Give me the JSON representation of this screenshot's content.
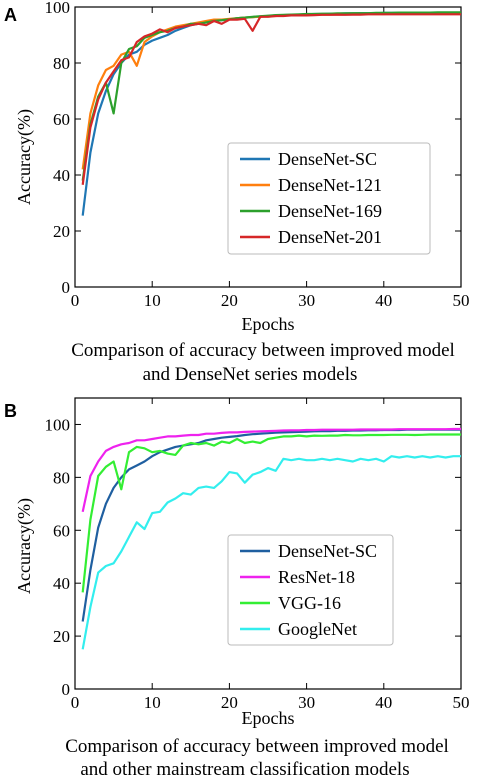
{
  "chart_data": [
    {
      "panel": "A",
      "type": "line",
      "xlabel": "Epochs",
      "ylabel": "Accuracy(%)",
      "xlim": [
        0,
        50
      ],
      "ylim": [
        0,
        100
      ],
      "xticks": [
        0,
        10,
        20,
        30,
        40,
        50
      ],
      "yticks": [
        0,
        20,
        40,
        60,
        80,
        100
      ],
      "grid": false,
      "legend_position": "center-right",
      "caption": [
        "Comparison of accuracy between improved model",
        "and DenseNet series models"
      ],
      "x": [
        1,
        2,
        3,
        4,
        5,
        6,
        7,
        8,
        9,
        10,
        11,
        12,
        13,
        14,
        15,
        16,
        17,
        18,
        19,
        20,
        21,
        22,
        23,
        24,
        25,
        26,
        27,
        28,
        29,
        30,
        31,
        32,
        33,
        34,
        35,
        36,
        37,
        38,
        39,
        40,
        41,
        42,
        43,
        44,
        45,
        46,
        47,
        48,
        49,
        50
      ],
      "series": [
        {
          "name": "DenseNet-SC",
          "color": "#1f77b4",
          "values": [
            25.5,
            48,
            62,
            70,
            76,
            80,
            83,
            84,
            86.5,
            88,
            89,
            90,
            91.5,
            92.5,
            93.5,
            94,
            94.5,
            95,
            95.3,
            95.6,
            96,
            96.2,
            96.4,
            96.6,
            96.8,
            97,
            97.1,
            97.2,
            97.3,
            97.4,
            97.5,
            97.5,
            97.6,
            97.6,
            97.7,
            97.7,
            97.8,
            97.8,
            97.8,
            97.9,
            97.9,
            97.9,
            98,
            98,
            98,
            98,
            98,
            98,
            98,
            98
          ]
        },
        {
          "name": "DenseNet-121",
          "color": "#ff7f0e",
          "values": [
            42,
            62,
            72,
            77.5,
            79,
            83,
            84,
            79,
            87.5,
            89.5,
            91,
            92,
            93,
            93.5,
            94,
            94.5,
            95,
            95.5,
            95.5,
            95.8,
            96,
            96.2,
            96.4,
            96.5,
            96.7,
            96.8,
            97,
            97,
            97.1,
            97.2,
            97.2,
            97.3,
            97.3,
            97.4,
            97.4,
            97.4,
            97.5,
            97.5,
            97.5,
            97.5,
            97.6,
            97.6,
            97.6,
            97.6,
            97.6,
            97.7,
            97.7,
            97.7,
            97.7,
            97.7
          ]
        },
        {
          "name": "DenseNet-169",
          "color": "#2ca02c",
          "values": [
            38,
            58,
            68,
            73,
            62,
            80,
            85,
            86,
            89,
            90,
            91,
            91.5,
            92.5,
            93,
            94,
            94,
            94.5,
            95,
            95.3,
            95.6,
            96,
            96.2,
            96.5,
            96.7,
            96.9,
            97.1,
            97.2,
            97.3,
            97.4,
            97.5,
            97.5,
            97.6,
            97.6,
            97.7,
            97.7,
            97.8,
            97.8,
            97.8,
            97.9,
            97.9,
            97.9,
            98,
            98,
            98,
            98,
            98,
            98.1,
            98.1,
            98.1,
            98.1
          ]
        },
        {
          "name": "DenseNet-201",
          "color": "#d62728",
          "values": [
            36.5,
            57,
            67,
            73,
            77,
            81,
            82,
            87.5,
            89.5,
            90.5,
            92,
            91,
            92.5,
            93,
            93.5,
            94,
            93.5,
            95,
            94,
            95.5,
            95.5,
            95.8,
            91.5,
            96.5,
            96.5,
            96.8,
            96.8,
            97,
            97,
            97,
            97.1,
            97.2,
            97.2,
            97.3,
            97.2,
            97.3,
            97.3,
            97.4,
            97.4,
            97.4,
            97.4,
            97.4,
            97.4,
            97.4,
            97.4,
            97.4,
            97.4,
            97.4,
            97.4,
            97.4
          ]
        }
      ]
    },
    {
      "panel": "B",
      "type": "line",
      "xlabel": "Epochs",
      "ylabel": "Accuracy(%)",
      "xlim": [
        0,
        50
      ],
      "ylim": [
        0,
        110
      ],
      "xticks": [
        0,
        10,
        20,
        30,
        40,
        50
      ],
      "yticks": [
        0,
        20,
        40,
        60,
        80,
        100
      ],
      "grid": false,
      "legend_position": "bottom-right",
      "caption": [
        "Comparison of accuracy between improved model",
        "and other mainstream classification models"
      ],
      "x": [
        1,
        2,
        3,
        4,
        5,
        6,
        7,
        8,
        9,
        10,
        11,
        12,
        13,
        14,
        15,
        16,
        17,
        18,
        19,
        20,
        21,
        22,
        23,
        24,
        25,
        26,
        27,
        28,
        29,
        30,
        31,
        32,
        33,
        34,
        35,
        36,
        37,
        38,
        39,
        40,
        41,
        42,
        43,
        44,
        45,
        46,
        47,
        48,
        49,
        50
      ],
      "series": [
        {
          "name": "DenseNet-SC",
          "color": "#1f5fa0",
          "values": [
            25.5,
            45,
            61,
            70,
            76,
            80,
            83,
            84.5,
            86,
            88,
            89.5,
            90.5,
            91.5,
            92,
            92.5,
            93,
            94,
            94.5,
            95,
            95.3,
            95.6,
            96,
            96.3,
            96.5,
            96.7,
            96.9,
            97,
            97.1,
            97.2,
            97.3,
            97.4,
            97.5,
            97.5,
            97.6,
            97.6,
            97.7,
            97.7,
            97.8,
            97.8,
            97.9,
            97.9,
            97.9,
            98,
            98,
            98,
            98,
            98,
            98,
            98,
            98
          ]
        },
        {
          "name": "ResNet-18",
          "color": "#ee22ee",
          "values": [
            67,
            80.5,
            86,
            90,
            91.5,
            92.5,
            93,
            94,
            94,
            94.5,
            95,
            95.5,
            95.5,
            95.8,
            96,
            96,
            96.5,
            96.5,
            96.8,
            97,
            97,
            97.2,
            97.3,
            97.4,
            97.5,
            97.6,
            97.7,
            97.8,
            97.8,
            97.9,
            97.9,
            98,
            98,
            98,
            98,
            98,
            98.1,
            98.1,
            98.1,
            98.1,
            98.1,
            98.2,
            98.2,
            98.2,
            98.2,
            98.2,
            98.2,
            98.2,
            98.3,
            98.3
          ]
        },
        {
          "name": "VGG-16",
          "color": "#33ee33",
          "values": [
            36.5,
            64,
            80.5,
            84,
            86,
            75.5,
            89.5,
            91.5,
            91,
            89.5,
            90,
            89,
            88.5,
            92,
            93,
            92.5,
            93,
            92,
            93.5,
            93,
            94.5,
            93,
            93.5,
            93,
            94.5,
            95,
            95.5,
            95.5,
            95.8,
            95.5,
            95.8,
            95.7,
            95.8,
            95.8,
            96,
            95.9,
            95.9,
            96,
            96,
            96,
            96.1,
            96.1,
            96.1,
            96,
            96.1,
            96.2,
            96.2,
            96.2,
            96.2,
            96.2
          ]
        },
        {
          "name": "GoogleNet",
          "color": "#33eeee",
          "values": [
            15,
            31,
            44,
            46.5,
            47.5,
            52,
            57.5,
            63,
            60.5,
            66.5,
            67,
            70.5,
            72,
            74,
            73.5,
            76,
            76.5,
            76,
            78.5,
            82,
            81.5,
            78,
            81,
            82,
            83.5,
            82.5,
            87,
            86.5,
            87,
            86.5,
            86.5,
            87,
            86.5,
            87,
            86.5,
            86,
            87,
            86.5,
            87,
            86,
            88,
            87.5,
            88,
            87.5,
            88,
            87.5,
            88,
            87.5,
            88,
            88
          ]
        }
      ]
    }
  ]
}
